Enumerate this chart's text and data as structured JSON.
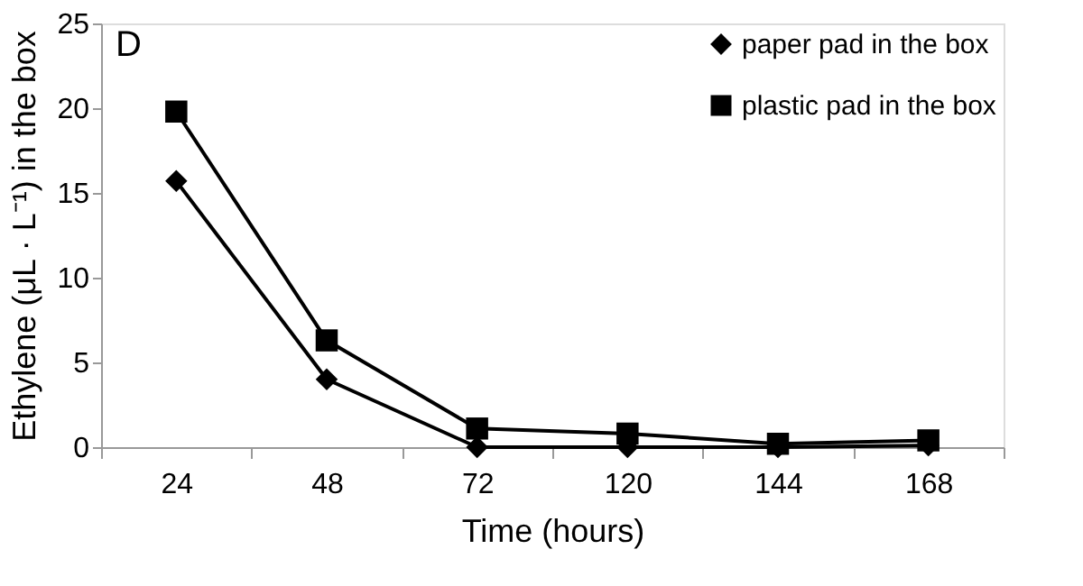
{
  "chart_data": {
    "type": "line",
    "xlabel": "Time (hours)",
    "ylabel": "Ethylene (μL · L⁻¹) in the box",
    "annotations": [
      "D"
    ],
    "categories": [
      "24",
      "48",
      "72",
      "120",
      "144",
      "168"
    ],
    "series": [
      {
        "name": "paper pad in the box",
        "color": "#000000",
        "marker": "diamond",
        "values": [
          15.7,
          4.0,
          0.0,
          0.0,
          0.0,
          0.1
        ]
      },
      {
        "name": "plastic pad in the box",
        "color": "#000000",
        "marker": "square",
        "values": [
          19.8,
          6.3,
          1.1,
          0.8,
          0.2,
          0.4
        ]
      }
    ],
    "ylim": [
      0,
      25
    ],
    "yticks": [
      0,
      5,
      10,
      15,
      20,
      25
    ],
    "grid": false,
    "legend": "top right",
    "line_style": "solid"
  }
}
